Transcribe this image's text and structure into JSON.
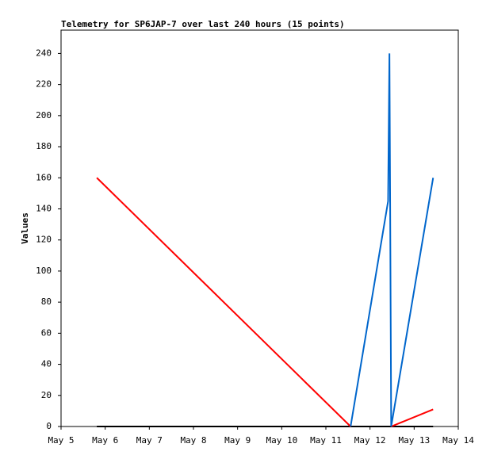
{
  "chart_data": {
    "type": "line",
    "title": "Telemetry for SP6JAP-7 over last 240 hours (15 points)",
    "y_label": "Values",
    "x": [
      5.81,
      11.56,
      12.41,
      12.44,
      12.48,
      13.43
    ],
    "series": [
      {
        "name": "black",
        "color": "#000000",
        "values": [
          0,
          0,
          0,
          0,
          0,
          0
        ]
      },
      {
        "name": "red",
        "color": "#ff0000",
        "values": [
          160,
          0,
          null,
          null,
          0,
          11
        ]
      },
      {
        "name": "blue",
        "color": "#0066cc",
        "values": [
          null,
          0,
          145,
          240,
          0,
          160
        ]
      }
    ],
    "xlim": [
      5,
      14
    ],
    "xticks": [
      {
        "value": 5,
        "label": "May 5"
      },
      {
        "value": 6,
        "label": "May 6"
      },
      {
        "value": 7,
        "label": "May 7"
      },
      {
        "value": 8,
        "label": "May 8"
      },
      {
        "value": 9,
        "label": "May 9"
      },
      {
        "value": 10,
        "label": "May 10"
      },
      {
        "value": 11,
        "label": "May 11"
      },
      {
        "value": 12,
        "label": "May 12"
      },
      {
        "value": 13,
        "label": "May 13"
      },
      {
        "value": 14,
        "label": "May 14"
      }
    ],
    "ylim": [
      0,
      255
    ],
    "yticks": [
      0,
      20,
      40,
      60,
      80,
      100,
      120,
      140,
      160,
      180,
      200,
      220,
      240
    ]
  }
}
